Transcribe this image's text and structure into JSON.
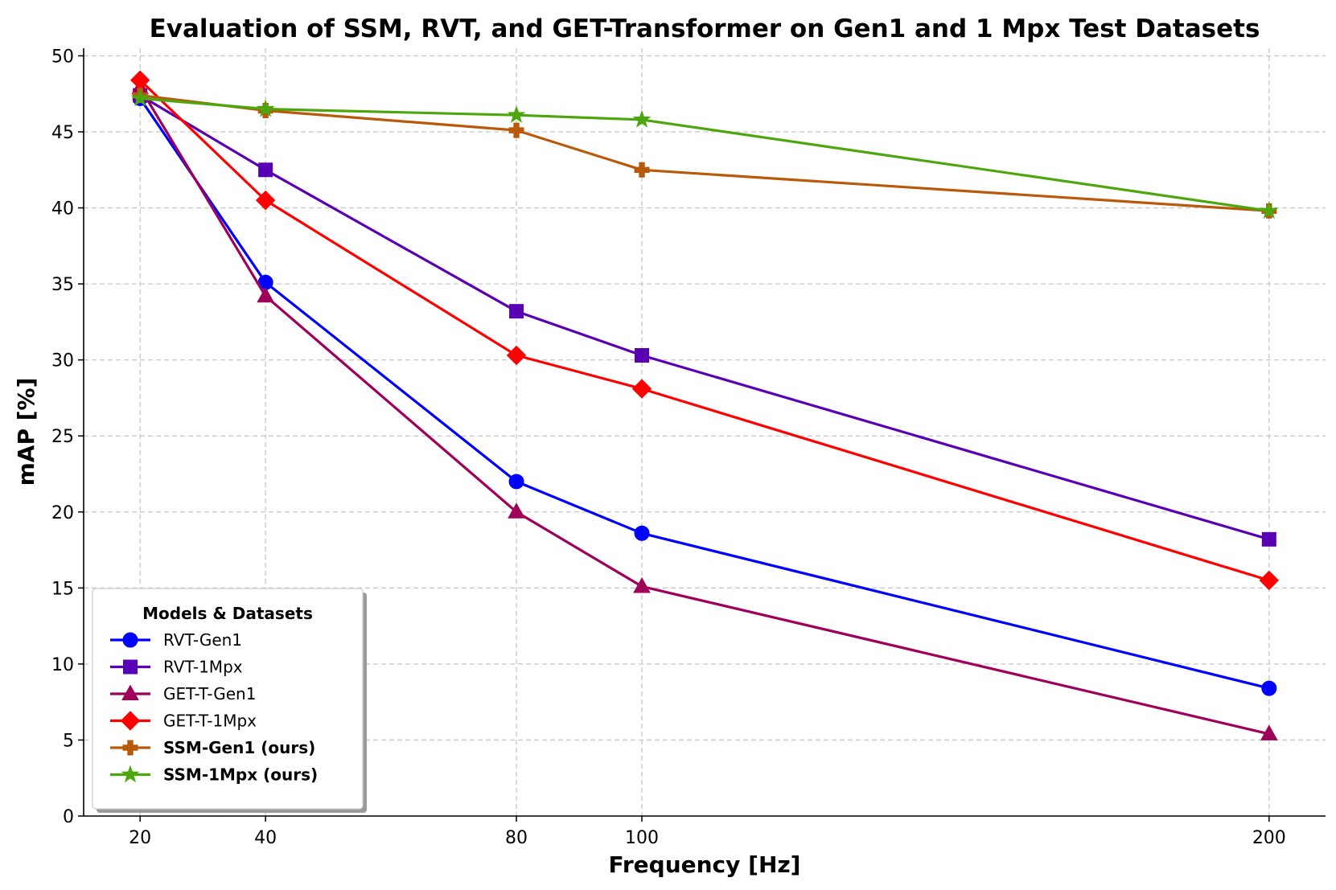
{
  "chart_data": {
    "type": "line",
    "title": "Evaluation of SSM, RVT, and GET-Transformer on Gen1 and 1 Mpx Test Datasets",
    "xlabel": "Frequency [Hz]",
    "ylabel": "mAP [%]",
    "x": [
      20,
      40,
      80,
      100,
      200
    ],
    "xticks": [
      "20",
      "40",
      "80",
      "100",
      "200"
    ],
    "xlim": [
      11,
      209
    ],
    "ylim": [
      0,
      50.5
    ],
    "yticks": [
      "0",
      "5",
      "10",
      "15",
      "20",
      "25",
      "30",
      "35",
      "40",
      "45",
      "50"
    ],
    "grid": true,
    "legend": {
      "title": "Models & Datasets",
      "position": "lower-left"
    },
    "series": [
      {
        "name": "RVT-Gen1",
        "values": [
          47.2,
          35.1,
          22.0,
          18.6,
          8.4
        ],
        "color": "#0000ff",
        "marker": "circle",
        "bold": false
      },
      {
        "name": "RVT-1Mpx",
        "values": [
          47.4,
          42.5,
          33.2,
          30.3,
          18.2
        ],
        "color": "#5a00b4",
        "marker": "square",
        "bold": false
      },
      {
        "name": "GET-T-Gen1",
        "values": [
          47.9,
          34.2,
          20.0,
          15.1,
          5.4
        ],
        "color": "#9e005a",
        "marker": "triangle",
        "bold": false
      },
      {
        "name": "GET-T-1Mpx",
        "values": [
          48.4,
          40.5,
          30.3,
          28.1,
          15.5
        ],
        "color": "#ff0000",
        "marker": "diamond",
        "bold": false
      },
      {
        "name": "SSM-Gen1 (ours)",
        "values": [
          47.4,
          46.4,
          45.1,
          42.5,
          39.8
        ],
        "color": "#b85a0a",
        "marker": "plus",
        "bold": true
      },
      {
        "name": "SSM-1Mpx (ours)",
        "values": [
          47.2,
          46.5,
          46.1,
          45.8,
          39.8
        ],
        "color": "#4ea60e",
        "marker": "star",
        "bold": true
      }
    ]
  }
}
